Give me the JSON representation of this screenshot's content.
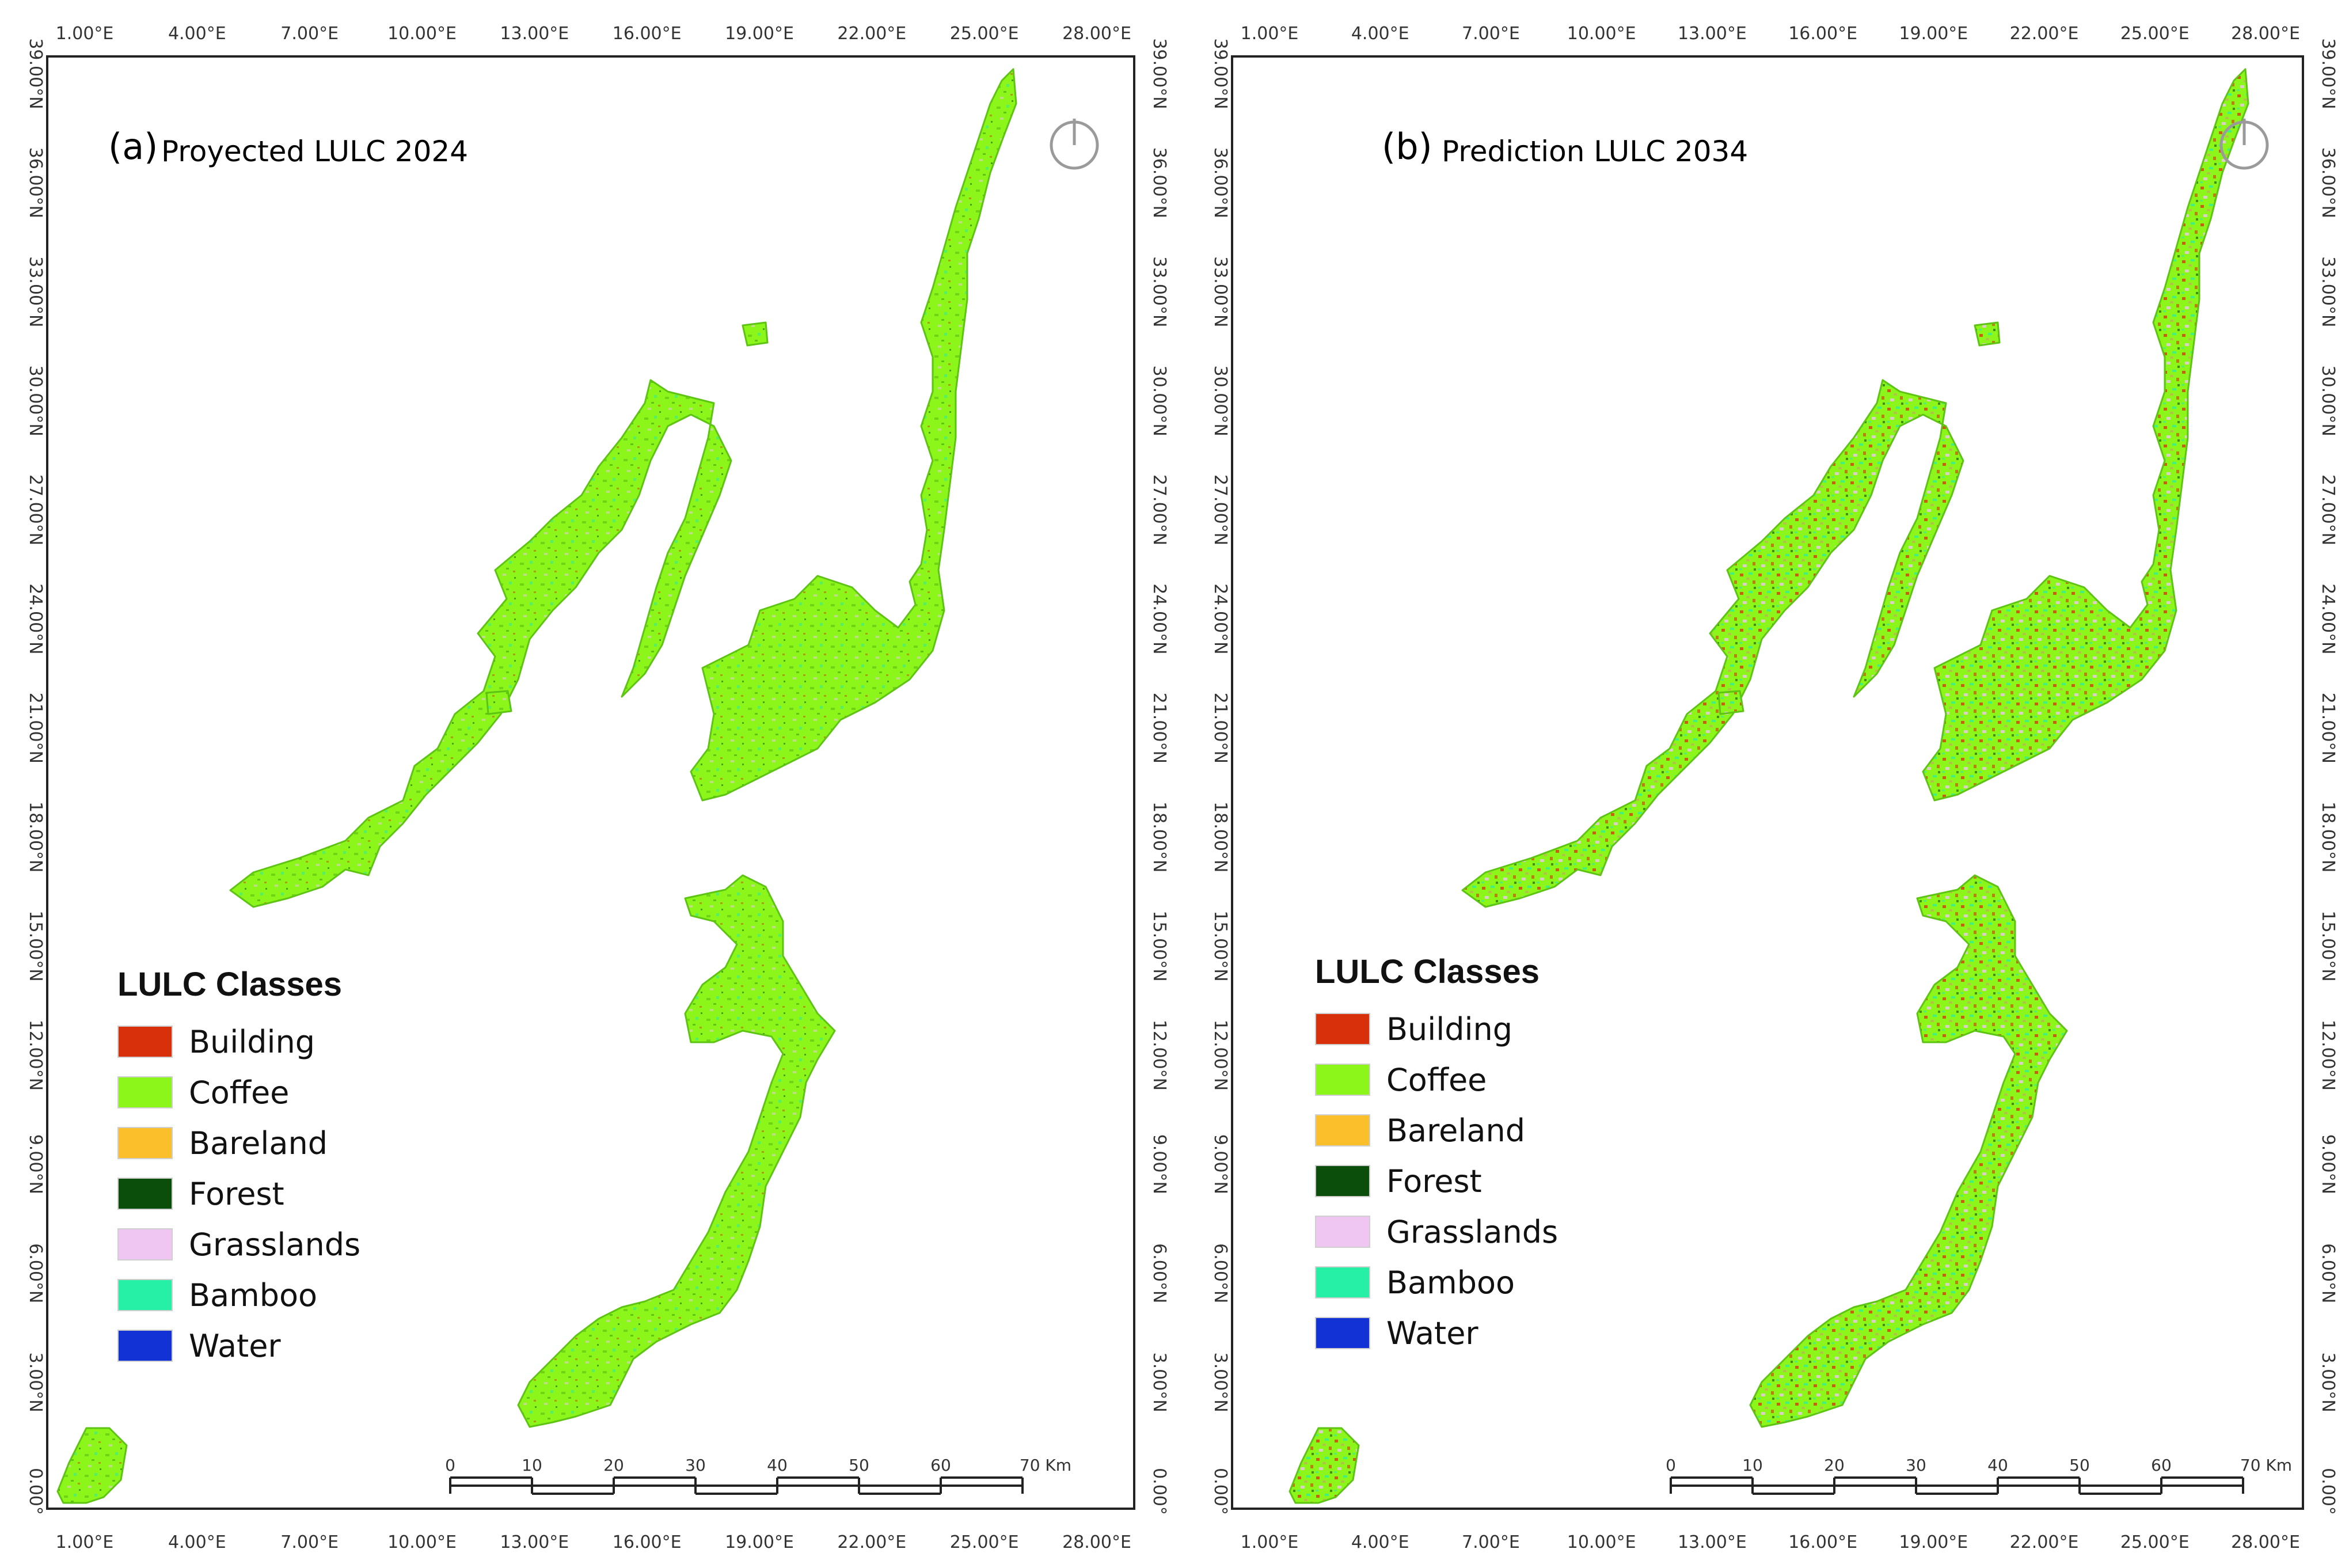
{
  "panels": [
    {
      "letter": "(a)",
      "title": "Proyected LULC 2024",
      "pattern": "2024",
      "legend_title": "LULC Classes",
      "scale_unit": "70 Km"
    },
    {
      "letter": "(b)",
      "title": "Prediction LULC 2034",
      "pattern": "2034",
      "legend_title": "LULC Classes",
      "scale_unit": "70 Km"
    }
  ],
  "legend_items": [
    {
      "label": "Building",
      "color": "#d8300a"
    },
    {
      "label": "Coffee",
      "color": "#8cf51a"
    },
    {
      "label": "Bareland",
      "color": "#fbbf2c"
    },
    {
      "label": "Forest",
      "color": "#0b4d0b"
    },
    {
      "label": "Grasslands",
      "color": "#efc6f2"
    },
    {
      "label": "Bamboo",
      "color": "#26efa6"
    },
    {
      "label": "Water",
      "color": "#1232d6"
    }
  ],
  "lon_ticks": [
    "1.00°E",
    "4.00°E",
    "7.00°E",
    "10.00°E",
    "13.00°E",
    "16.00°E",
    "19.00°E",
    "22.00°E",
    "25.00°E",
    "28.00°E"
  ],
  "lat_ticks": [
    "39.00°N",
    "36.00°N",
    "33.00°N",
    "30.00°N",
    "27.00°N",
    "24.00°N",
    "21.00°N",
    "18.00°N",
    "15.00°N",
    "12.00°N",
    "9.00°N",
    "6.00°N",
    "3.00°N",
    "0.00°"
  ],
  "scale_ticks": [
    "0",
    "10",
    "20",
    "30",
    "40",
    "50",
    "60"
  ],
  "colors": {
    "frame": "#222222",
    "coffee": "#8cf51a",
    "coffee_dark": "#5dc414",
    "building": "#d8300a",
    "bamboo": "#26efa6",
    "grass": "#efc6f2",
    "forest": "#0b4d0b",
    "bareland": "#fbbf2c"
  }
}
